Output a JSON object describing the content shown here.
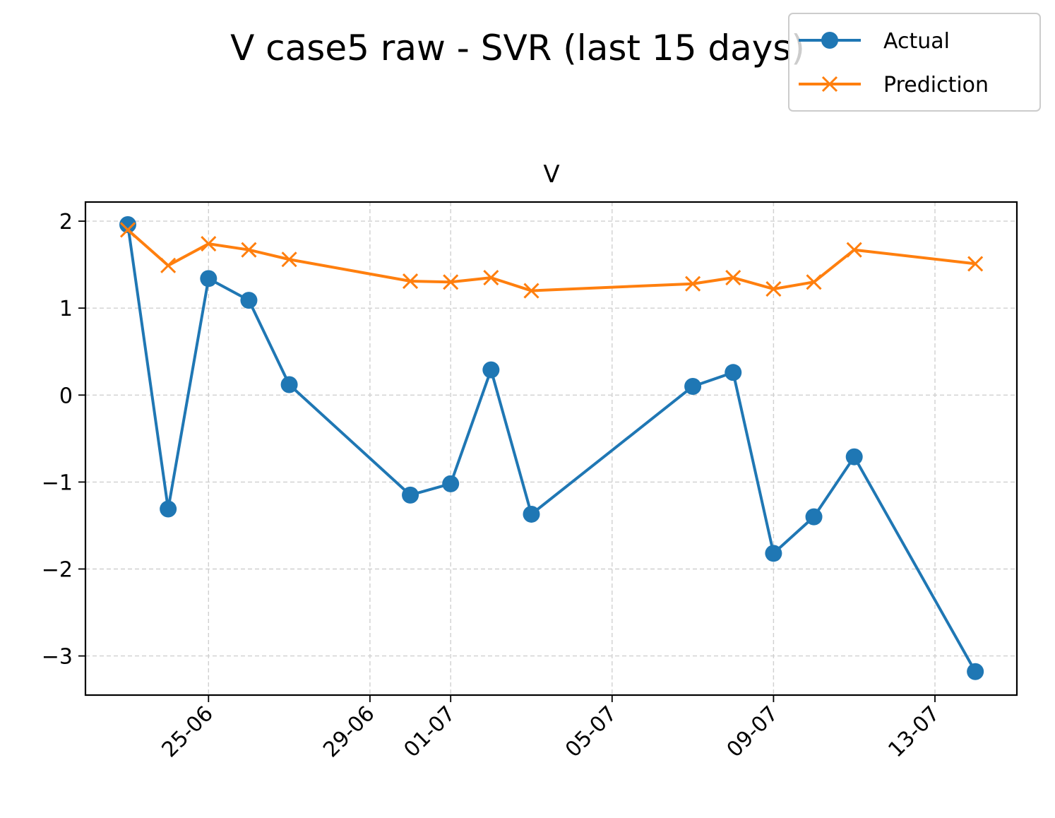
{
  "figure_title": "V case5 raw - SVR (last 15 days)",
  "chart_data": {
    "type": "line",
    "title": "V",
    "xlabel": "",
    "ylabel": "",
    "x": [
      "06-23",
      "06-24",
      "06-25",
      "06-26",
      "06-27",
      "06-30",
      "07-01",
      "07-02",
      "07-03",
      "07-07",
      "07-08",
      "07-09",
      "07-10",
      "07-11",
      "07-14"
    ],
    "x_ticks": [
      "25-06",
      "29-06",
      "01-07",
      "05-07",
      "09-07",
      "13-07"
    ],
    "y_ticks": [
      "2",
      "1",
      "0",
      "−1",
      "−2",
      "−3"
    ],
    "ylim": [
      -3.45,
      2.22
    ],
    "grid": true,
    "legend_position": "top-right, outside the plot",
    "series": [
      {
        "name": "Actual",
        "color": "#1f77b4",
        "marker": "circle",
        "values": [
          1.96,
          -1.31,
          1.34,
          1.09,
          0.12,
          -1.15,
          -1.02,
          0.29,
          -1.37,
          0.1,
          0.26,
          -1.82,
          -1.4,
          -0.71,
          -3.18
        ]
      },
      {
        "name": "Prediction",
        "color": "#ff7f0e",
        "marker": "x",
        "values": [
          1.9,
          1.49,
          1.74,
          1.67,
          1.56,
          1.31,
          1.3,
          1.35,
          1.2,
          1.28,
          1.35,
          1.22,
          1.3,
          1.67,
          1.51
        ]
      }
    ]
  }
}
